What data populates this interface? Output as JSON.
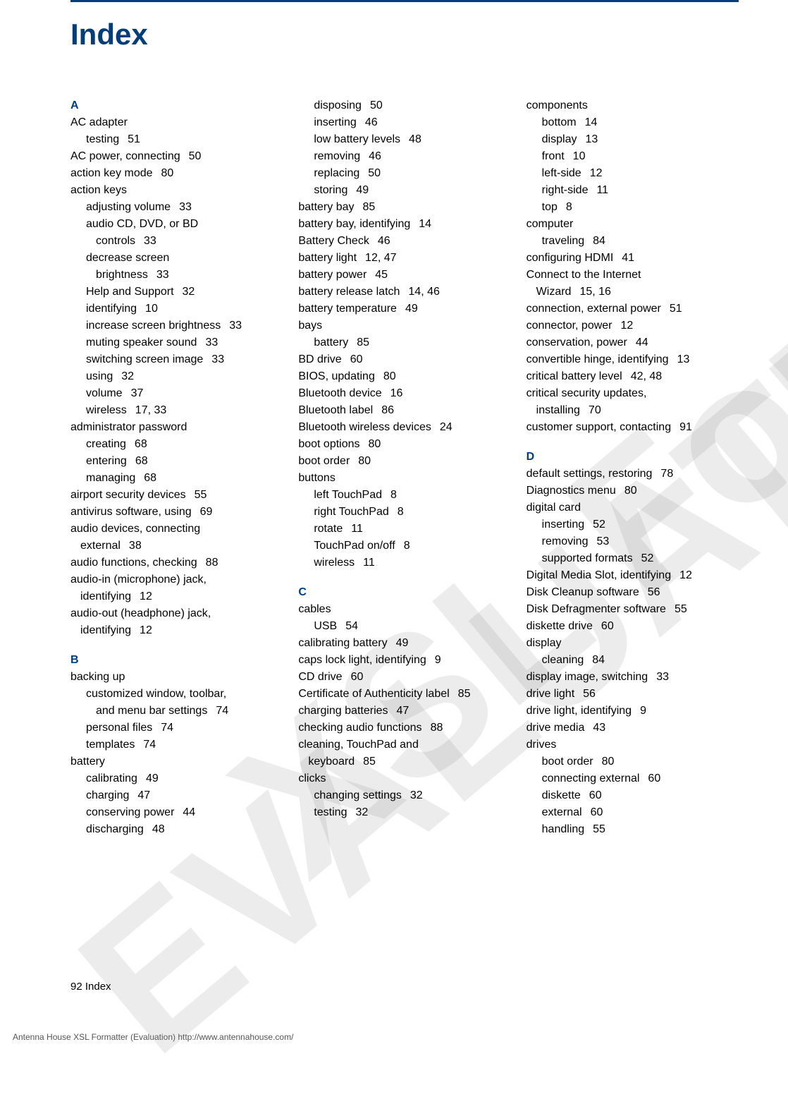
{
  "title": "Index",
  "watermarks": {
    "wm1": "XSL Formatter",
    "wm2": "EVALUATION"
  },
  "footer": {
    "page": "92    Index",
    "eval": "Antenna House XSL Formatter (Evaluation)  http://www.antennahouse.com/"
  },
  "colors": {
    "accent": "#003d7a",
    "text": "#000000",
    "watermark": "rgba(128,128,128,0.15)"
  },
  "col1": [
    {
      "t": "letter",
      "v": "A"
    },
    {
      "t": "e0",
      "term": "AC adapter"
    },
    {
      "t": "e1",
      "term": "testing",
      "p": "51"
    },
    {
      "t": "e0",
      "term": "AC power, connecting",
      "p": "50"
    },
    {
      "t": "e0",
      "term": "action key mode",
      "p": "80"
    },
    {
      "t": "e0",
      "term": "action keys"
    },
    {
      "t": "e1",
      "term": "adjusting volume",
      "p": "33"
    },
    {
      "t": "e1",
      "term": "audio CD, DVD, or BD"
    },
    {
      "t": "e2",
      "term": "controls",
      "p": "33"
    },
    {
      "t": "e1",
      "term": "decrease screen"
    },
    {
      "t": "e2",
      "term": "brightness",
      "p": "33"
    },
    {
      "t": "e1",
      "term": "Help and Support",
      "p": "32"
    },
    {
      "t": "e1",
      "term": "identifying",
      "p": "10"
    },
    {
      "t": "e1",
      "term": "increase screen brightness",
      "p": "33"
    },
    {
      "t": "e1",
      "term": "muting speaker sound",
      "p": "33"
    },
    {
      "t": "e1",
      "term": "switching screen image",
      "p": "33"
    },
    {
      "t": "e1",
      "term": "using",
      "p": "32"
    },
    {
      "t": "e1",
      "term": "volume",
      "p": "37"
    },
    {
      "t": "e1",
      "term": "wireless",
      "p": "17,  33"
    },
    {
      "t": "e0",
      "term": "administrator password"
    },
    {
      "t": "e1",
      "term": "creating",
      "p": "68"
    },
    {
      "t": "e1",
      "term": "entering",
      "p": "68"
    },
    {
      "t": "e1",
      "term": "managing",
      "p": "68"
    },
    {
      "t": "e0",
      "term": "airport security devices",
      "p": "55"
    },
    {
      "t": "e0",
      "term": "antivirus software, using",
      "p": "69"
    },
    {
      "t": "e0",
      "term": "audio devices, connecting"
    },
    {
      "t": "ec",
      "term": "external",
      "p": "38"
    },
    {
      "t": "e0",
      "term": "audio functions, checking",
      "p": "88"
    },
    {
      "t": "e0",
      "term": "audio-in (microphone) jack,"
    },
    {
      "t": "ec",
      "term": "identifying",
      "p": "12"
    },
    {
      "t": "e0",
      "term": "audio-out (headphone) jack,"
    },
    {
      "t": "ec",
      "term": "identifying",
      "p": "12"
    },
    {
      "t": "letter",
      "v": "B",
      "gap": true
    },
    {
      "t": "e0",
      "term": "backing up"
    },
    {
      "t": "e1",
      "term": "customized window, toolbar,"
    },
    {
      "t": "e2",
      "term": "and menu bar settings",
      "p": "74"
    },
    {
      "t": "e1",
      "term": "personal files",
      "p": "74"
    },
    {
      "t": "e1",
      "term": "templates",
      "p": "74"
    },
    {
      "t": "e0",
      "term": "battery"
    },
    {
      "t": "e1",
      "term": "calibrating",
      "p": "49"
    },
    {
      "t": "e1",
      "term": "charging",
      "p": "47"
    },
    {
      "t": "e1",
      "term": "conserving power",
      "p": "44"
    },
    {
      "t": "e1",
      "term": "discharging",
      "p": "48"
    }
  ],
  "col2": [
    {
      "t": "e1",
      "term": "disposing",
      "p": "50"
    },
    {
      "t": "e1",
      "term": "inserting",
      "p": "46"
    },
    {
      "t": "e1",
      "term": "low battery levels",
      "p": "48"
    },
    {
      "t": "e1",
      "term": "removing",
      "p": "46"
    },
    {
      "t": "e1",
      "term": "replacing",
      "p": "50"
    },
    {
      "t": "e1",
      "term": "storing",
      "p": "49"
    },
    {
      "t": "e0",
      "term": "battery bay",
      "p": "85"
    },
    {
      "t": "e0",
      "term": "battery bay, identifying",
      "p": "14"
    },
    {
      "t": "e0",
      "term": "Battery Check",
      "p": "46"
    },
    {
      "t": "e0",
      "term": "battery light",
      "p": "12,  47"
    },
    {
      "t": "e0",
      "term": "battery power",
      "p": "45"
    },
    {
      "t": "e0",
      "term": "battery release latch",
      "p": "14,  46"
    },
    {
      "t": "e0",
      "term": "battery temperature",
      "p": "49"
    },
    {
      "t": "e0",
      "term": "bays"
    },
    {
      "t": "e1",
      "term": "battery",
      "p": "85"
    },
    {
      "t": "e0",
      "term": "BD drive",
      "p": "60"
    },
    {
      "t": "e0",
      "term": "BIOS, updating",
      "p": "80"
    },
    {
      "t": "e0",
      "term": "Bluetooth device",
      "p": "16"
    },
    {
      "t": "e0",
      "term": "Bluetooth label",
      "p": "86"
    },
    {
      "t": "e0",
      "term": "Bluetooth wireless devices",
      "p": "24"
    },
    {
      "t": "e0",
      "term": "boot options",
      "p": "80"
    },
    {
      "t": "e0",
      "term": "boot order",
      "p": "80"
    },
    {
      "t": "e0",
      "term": "buttons"
    },
    {
      "t": "e1",
      "term": "left TouchPad",
      "p": "8"
    },
    {
      "t": "e1",
      "term": "right TouchPad",
      "p": "8"
    },
    {
      "t": "e1",
      "term": "rotate",
      "p": "11"
    },
    {
      "t": "e1",
      "term": "TouchPad on/off",
      "p": "8"
    },
    {
      "t": "e1",
      "term": "wireless",
      "p": "11"
    },
    {
      "t": "letter",
      "v": "C",
      "gap": true
    },
    {
      "t": "e0",
      "term": "cables"
    },
    {
      "t": "e1",
      "term": "USB",
      "p": "54"
    },
    {
      "t": "e0",
      "term": "calibrating battery",
      "p": "49"
    },
    {
      "t": "e0",
      "term": "caps lock light, identifying",
      "p": "9"
    },
    {
      "t": "e0",
      "term": "CD drive",
      "p": "60"
    },
    {
      "t": "e0",
      "term": "Certificate of Authenticity label",
      "p": "85"
    },
    {
      "t": "e0",
      "term": "charging batteries",
      "p": "47"
    },
    {
      "t": "e0",
      "term": "checking audio functions",
      "p": "88"
    },
    {
      "t": "e0",
      "term": "cleaning, TouchPad and"
    },
    {
      "t": "ec",
      "term": "keyboard",
      "p": "85"
    },
    {
      "t": "e0",
      "term": "clicks"
    },
    {
      "t": "e1",
      "term": "changing settings",
      "p": "32"
    },
    {
      "t": "e1",
      "term": "testing",
      "p": "32"
    }
  ],
  "col3": [
    {
      "t": "e0",
      "term": "components"
    },
    {
      "t": "e1",
      "term": "bottom",
      "p": "14"
    },
    {
      "t": "e1",
      "term": "display",
      "p": "13"
    },
    {
      "t": "e1",
      "term": "front",
      "p": "10"
    },
    {
      "t": "e1",
      "term": "left-side",
      "p": "12"
    },
    {
      "t": "e1",
      "term": "right-side",
      "p": "11"
    },
    {
      "t": "e1",
      "term": "top",
      "p": "8"
    },
    {
      "t": "e0",
      "term": "computer"
    },
    {
      "t": "e1",
      "term": "traveling",
      "p": "84"
    },
    {
      "t": "e0",
      "term": "configuring HDMI",
      "p": "41"
    },
    {
      "t": "e0",
      "term": "Connect to the Internet"
    },
    {
      "t": "ec",
      "term": "Wizard",
      "p": "15,  16"
    },
    {
      "t": "e0",
      "term": "connection, external power",
      "p": "51"
    },
    {
      "t": "e0",
      "term": "connector, power",
      "p": "12"
    },
    {
      "t": "e0",
      "term": "conservation, power",
      "p": "44"
    },
    {
      "t": "e0",
      "term": "convertible hinge, identifying",
      "p": "13"
    },
    {
      "t": "e0",
      "term": "critical battery level",
      "p": "42,  48"
    },
    {
      "t": "e0",
      "term": "critical security updates,"
    },
    {
      "t": "ec",
      "term": "installing",
      "p": "70"
    },
    {
      "t": "e0",
      "term": "customer support, contacting",
      "p": "91"
    },
    {
      "t": "letter",
      "v": "D",
      "gap": true
    },
    {
      "t": "e0",
      "term": "default settings, restoring",
      "p": "78"
    },
    {
      "t": "e0",
      "term": "Diagnostics menu",
      "p": "80"
    },
    {
      "t": "e0",
      "term": "digital card"
    },
    {
      "t": "e1",
      "term": "inserting",
      "p": "52"
    },
    {
      "t": "e1",
      "term": "removing",
      "p": "53"
    },
    {
      "t": "e1",
      "term": "supported formats",
      "p": "52"
    },
    {
      "t": "e0",
      "term": "Digital Media Slot, identifying",
      "p": "12"
    },
    {
      "t": "e0",
      "term": "Disk Cleanup software",
      "p": "56"
    },
    {
      "t": "e0",
      "term": "Disk Defragmenter software",
      "p": "55"
    },
    {
      "t": "e0",
      "term": "diskette drive",
      "p": "60"
    },
    {
      "t": "e0",
      "term": "display"
    },
    {
      "t": "e1",
      "term": "cleaning",
      "p": "84"
    },
    {
      "t": "e0",
      "term": "display image, switching",
      "p": "33"
    },
    {
      "t": "e0",
      "term": "drive light",
      "p": "56"
    },
    {
      "t": "e0",
      "term": "drive light, identifying",
      "p": "9"
    },
    {
      "t": "e0",
      "term": "drive media",
      "p": "43"
    },
    {
      "t": "e0",
      "term": "drives"
    },
    {
      "t": "e1",
      "term": "boot order",
      "p": "80"
    },
    {
      "t": "e1",
      "term": "connecting external",
      "p": "60"
    },
    {
      "t": "e1",
      "term": "diskette",
      "p": "60"
    },
    {
      "t": "e1",
      "term": "external",
      "p": "60"
    },
    {
      "t": "e1",
      "term": "handling",
      "p": "55"
    }
  ]
}
